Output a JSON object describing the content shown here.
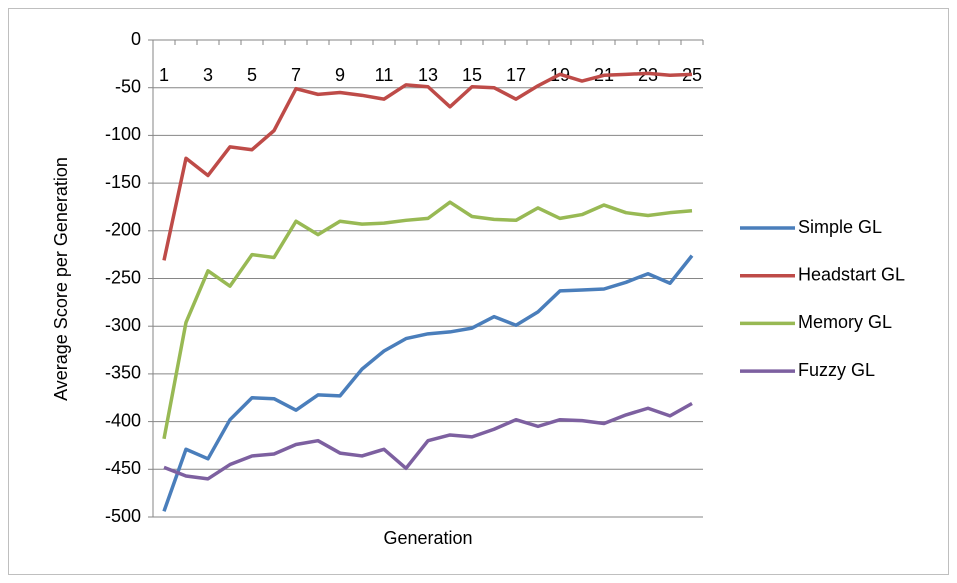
{
  "chart_data": {
    "type": "line",
    "y_label": "Average Score per Generation",
    "x_label": "Generation",
    "categories": [
      "1",
      null,
      "3",
      null,
      "5",
      null,
      "7",
      null,
      "9",
      null,
      "11",
      null,
      "13",
      null,
      "15",
      null,
      "17",
      null,
      "19",
      null,
      "21",
      null,
      "23",
      null,
      "25"
    ],
    "ylim": [
      -500,
      0
    ],
    "yticks": [
      0,
      -50,
      -100,
      -150,
      -200,
      -250,
      -300,
      -350,
      -400,
      -450,
      -500
    ],
    "grid": true,
    "legend": "right",
    "series": [
      {
        "name": "Simple GL",
        "color": "#4a7ebb",
        "values": [
          -494,
          -429,
          -439,
          -398,
          -375,
          -376,
          -388,
          -372,
          -373,
          -345,
          -326,
          -313,
          -308,
          -306,
          -302,
          -290,
          -299,
          -285,
          -263,
          -262,
          -261,
          -254,
          -245,
          -255,
          -226
        ]
      },
      {
        "name": "Headstart GL",
        "color": "#be4b48",
        "values": [
          -231,
          -124,
          -142,
          -112,
          -115,
          -95,
          -51,
          -57,
          -55,
          -58,
          -62,
          -47,
          -49,
          -70,
          -49,
          -50,
          -62,
          -48,
          -36,
          -43,
          -37,
          -36,
          -35,
          -37,
          -36
        ]
      },
      {
        "name": "Memory GL",
        "color": "#98b954",
        "values": [
          -418,
          -296,
          -242,
          -258,
          -225,
          -228,
          -190,
          -204,
          -190,
          -193,
          -192,
          -189,
          -187,
          -170,
          -185,
          -188,
          -189,
          -176,
          -187,
          -183,
          -173,
          -181,
          -184,
          -181,
          -179
        ]
      },
      {
        "name": "Fuzzy GL",
        "color": "#7d60a0",
        "values": [
          -448,
          -457,
          -460,
          -445,
          -436,
          -434,
          -424,
          -420,
          -433,
          -436,
          -429,
          -449,
          -420,
          -414,
          -416,
          -408,
          -398,
          -405,
          -398,
          -399,
          -402,
          -393,
          -386,
          -394,
          -381
        ]
      }
    ]
  }
}
